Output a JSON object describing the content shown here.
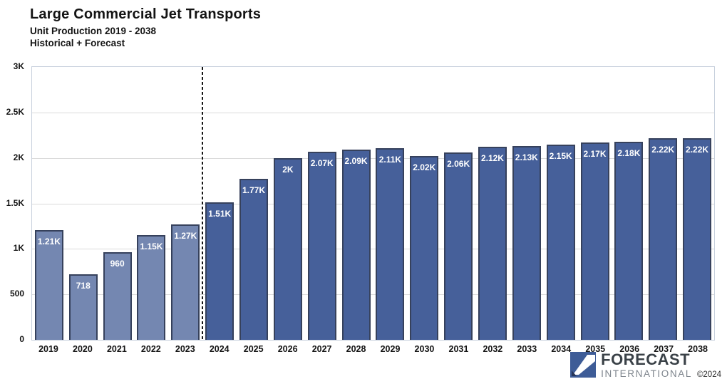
{
  "header": {
    "title": "Large Commercial Jet Transports",
    "subtitle": "Unit Production 2019 - 2038",
    "subtitle2": "Historical + Forecast"
  },
  "chart_data": {
    "type": "bar",
    "title": "Large Commercial Jet Transports",
    "categories": [
      "2019",
      "2020",
      "2021",
      "2022",
      "2023",
      "2024",
      "2025",
      "2026",
      "2027",
      "2028",
      "2029",
      "2030",
      "2031",
      "2032",
      "2033",
      "2034",
      "2035",
      "2036",
      "2037",
      "2038"
    ],
    "series": [
      {
        "name": "Historical",
        "color": "#7487B1",
        "categories": [
          "2019",
          "2020",
          "2021",
          "2022",
          "2023"
        ],
        "values": [
          1210,
          718,
          960,
          1150,
          1270
        ],
        "labels": [
          "1.21K",
          "718",
          "960",
          "1.15K",
          "1.27K"
        ]
      },
      {
        "name": "Forecast",
        "color": "#46609A",
        "categories": [
          "2024",
          "2025",
          "2026",
          "2027",
          "2028",
          "2029",
          "2030",
          "2031",
          "2032",
          "2033",
          "2034",
          "2035",
          "2036",
          "2037",
          "2038"
        ],
        "values": [
          1510,
          1770,
          2000,
          2070,
          2090,
          2110,
          2020,
          2060,
          2120,
          2130,
          2150,
          2170,
          2180,
          2220,
          2220
        ],
        "labels": [
          "1.51K",
          "1.77K",
          "2K",
          "2.07K",
          "2.09K",
          "2.11K",
          "2.02K",
          "2.06K",
          "2.12K",
          "2.13K",
          "2.15K",
          "2.17K",
          "2.18K",
          "2.22K",
          "2.22K"
        ]
      }
    ],
    "ylim": [
      0,
      3000
    ],
    "y_ticks": [
      {
        "v": 0,
        "label": "0"
      },
      {
        "v": 500,
        "label": "500"
      },
      {
        "v": 1000,
        "label": "1K"
      },
      {
        "v": 1500,
        "label": "1.5K"
      },
      {
        "v": 2000,
        "label": "2K"
      },
      {
        "v": 2500,
        "label": "2.5K"
      },
      {
        "v": 3000,
        "label": "3K"
      }
    ],
    "grid": true,
    "legend_position": "none",
    "separator_after_category": "2023",
    "colors": {
      "bar_border": "#36415C",
      "grid": "#DADADA",
      "plot_border": "#C7D0DD",
      "separator": "#141414",
      "bar_label_text": "#FFFFFF"
    }
  },
  "footer": {
    "brand_line1": "FORECAST",
    "brand_line2": "INTERNATIONAL",
    "copyright": "©2024",
    "logo_colors": {
      "square": "#3E5C97",
      "swoosh": "#FFFFFF",
      "corner": "#27355A"
    }
  }
}
